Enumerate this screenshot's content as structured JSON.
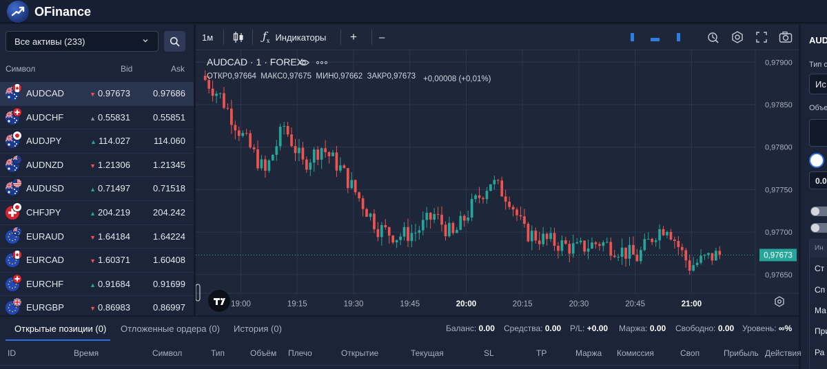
{
  "header": {
    "brand": "OFinance",
    "accent": "#2a62d6"
  },
  "symbols": {
    "dropdown_value": "Все активы (233)",
    "columns": {
      "symbol": "Символ",
      "bid": "Bid",
      "ask": "Ask"
    },
    "rows": [
      {
        "name": "AUDCAD",
        "dir": "down",
        "bid": "0.97673",
        "ask": "0.97686",
        "flags": [
          "au",
          "ca"
        ]
      },
      {
        "name": "AUDCHF",
        "dir": "flat",
        "bid": "0.55831",
        "ask": "0.55851",
        "flags": [
          "au",
          "ch"
        ]
      },
      {
        "name": "AUDJPY",
        "dir": "up",
        "bid": "114.027",
        "ask": "114.060",
        "flags": [
          "au",
          "jp"
        ]
      },
      {
        "name": "AUDNZD",
        "dir": "down",
        "bid": "1.21306",
        "ask": "1.21345",
        "flags": [
          "au",
          "nz"
        ]
      },
      {
        "name": "AUDUSD",
        "dir": "up",
        "bid": "0.71497",
        "ask": "0.71518",
        "flags": [
          "au",
          "us"
        ]
      },
      {
        "name": "CHFJPY",
        "dir": "up",
        "bid": "204.219",
        "ask": "204.242",
        "flags": [
          "ch",
          "jp"
        ]
      },
      {
        "name": "EURAUD",
        "dir": "down",
        "bid": "1.64184",
        "ask": "1.64224",
        "flags": [
          "eu",
          "au"
        ]
      },
      {
        "name": "EURCAD",
        "dir": "down",
        "bid": "1.60371",
        "ask": "1.60408",
        "flags": [
          "eu",
          "ca"
        ]
      },
      {
        "name": "EURCHF",
        "dir": "up",
        "bid": "0.91684",
        "ask": "0.91699",
        "flags": [
          "eu",
          "ch"
        ]
      },
      {
        "name": "EURGBP",
        "dir": "down",
        "bid": "0.86983",
        "ask": "0.86997",
        "flags": [
          "eu",
          "gb"
        ]
      }
    ]
  },
  "toolbar": {
    "interval": "1м",
    "indicators_label": "Индикаторы",
    "plus": "+",
    "minus": "–",
    "icons": [
      "candles-icon",
      "function-icon",
      "replay-icon",
      "settings-icon",
      "fullscreen-icon",
      "camera-icon"
    ]
  },
  "chart": {
    "symbol_title": "AUDCAD · 1 · FOREX",
    "ohlc": "ОТКР0,97664  МАКС0,97675  МИН0,97662  ЗАКР0,97673",
    "change": "+0,00008 (+0,01%)",
    "price_tag": "0,97673",
    "colors": {
      "up": "#26a69a",
      "down": "#ef5350",
      "grid": "#2b3752",
      "bg": "#1e2739"
    }
  },
  "chart_data": {
    "type": "candlestick",
    "y_ticks": [
      "0,97900",
      "0,97850",
      "0,97800",
      "0,97750",
      "0,97700",
      "0,97650"
    ],
    "ylim": [
      0.97628,
      0.97914
    ],
    "x_ticks": [
      {
        "label": "19:00",
        "index": 10
      },
      {
        "label": "19:15",
        "index": 25
      },
      {
        "label": "19:30",
        "index": 40
      },
      {
        "label": "19:45",
        "index": 55
      },
      {
        "label": "20:00",
        "index": 70
      },
      {
        "label": "20:15",
        "index": 85
      },
      {
        "label": "20:30",
        "index": 100
      },
      {
        "label": "20:45",
        "index": 115
      },
      {
        "label": "21:00",
        "index": 130
      }
    ],
    "bold_ticks": [
      "20:00",
      "21:00"
    ],
    "last_price": 0.97673,
    "grid": true
  },
  "bottom": {
    "tabs": [
      {
        "label": "Открытые позиции (0)"
      },
      {
        "label": "Отложенные ордера (0)"
      },
      {
        "label": "История (0)"
      }
    ],
    "stats": [
      {
        "label": "Баланс:",
        "value": "0.00"
      },
      {
        "label": "Средства:",
        "value": "0.00"
      },
      {
        "label": "P/L:",
        "value": "+0.00"
      },
      {
        "label": "Маржа:",
        "value": "0.00"
      },
      {
        "label": "Свободно:",
        "value": "0.00"
      },
      {
        "label": "Уровень:",
        "value": "∞%"
      }
    ],
    "columns": [
      "ID",
      "Время",
      "Символ",
      "Тип",
      "Объём",
      "Плечо",
      "Открытие",
      "Текущая",
      "SL",
      "TP",
      "Маржа",
      "Комиссия",
      "Своп",
      "Прибыль",
      "Действия"
    ]
  },
  "order_panel": {
    "title": "AUD",
    "type_label": "Тип о",
    "type_value": "Ис",
    "volume_label": "Объе",
    "value": "0.0",
    "items": [
      "Ин",
      "Ст",
      "Сп",
      "Ма",
      "При",
      "Ра"
    ]
  }
}
